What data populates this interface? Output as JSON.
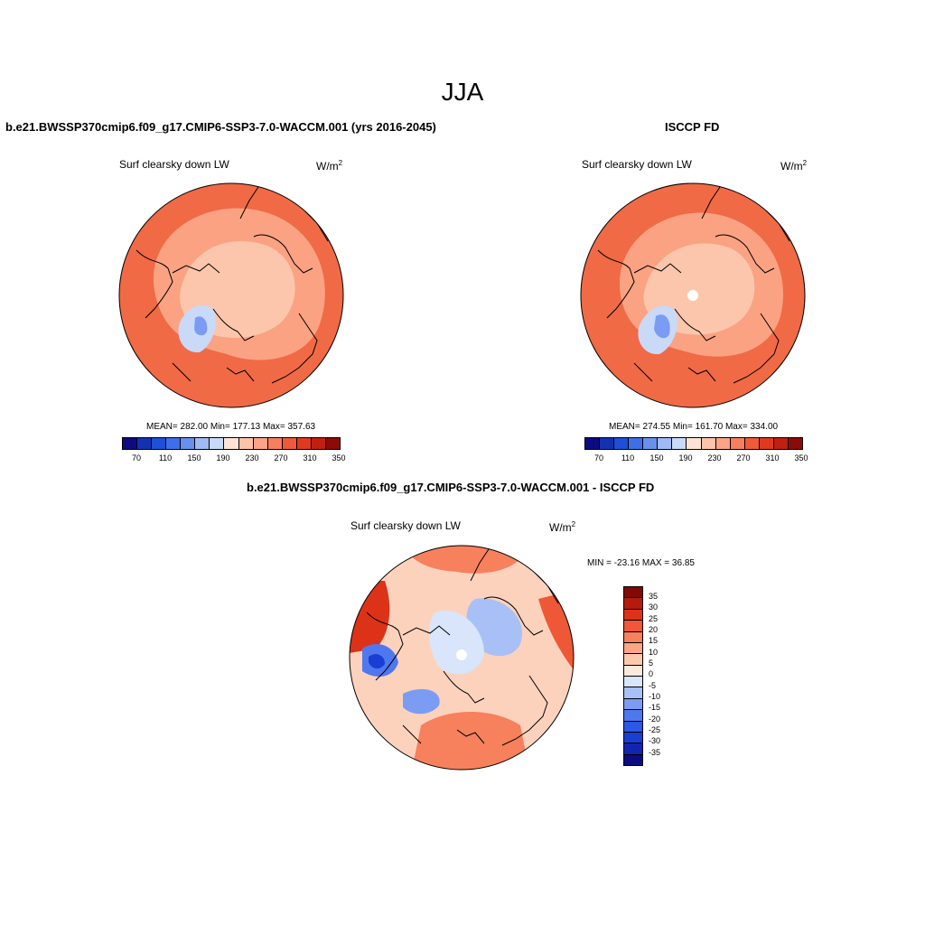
{
  "title": "JJA",
  "left_panel": {
    "case_title": "b.e21.BWSSP370cmip6.f09_g17.CMIP6-SSP3-7.0-WACCM.001 (yrs 2016-2045)",
    "variable": "Surf clearsky down LW",
    "units_base": "W/m",
    "units_exp": "2",
    "stats": "MEAN= 282.00  Min= 177.13  Max= 357.63"
  },
  "right_panel": {
    "case_title": "ISCCP FD",
    "variable": "Surf clearsky down LW",
    "units_base": "W/m",
    "units_exp": "2",
    "stats": "MEAN= 274.55  Min= 161.70  Max= 334.00"
  },
  "diff_panel": {
    "case_title": "b.e21.BWSSP370cmip6.f09_g17.CMIP6-SSP3-7.0-WACCM.001 - ISCCP FD",
    "variable": "Surf clearsky down LW",
    "units_base": "W/m",
    "units_exp": "2",
    "stats": "MIN = -23.16 MAX =  36.85"
  },
  "abs_colorbar": {
    "colors": [
      "#0c0b80",
      "#1232b0",
      "#1e4fd6",
      "#3f6fe8",
      "#6a90ee",
      "#9fbaf4",
      "#c9d9f8",
      "#fde3d6",
      "#fcc3aa",
      "#fba386",
      "#f77f5e",
      "#ef5a3a",
      "#dd3a1f",
      "#bf2012",
      "#8a0c08"
    ],
    "tick_labels": [
      "70",
      "110",
      "150",
      "190",
      "230",
      "270",
      "310",
      "350"
    ]
  },
  "diff_colorbar": {
    "colors": [
      "#0c0b80",
      "#1225b0",
      "#1a3ed4",
      "#2b58e6",
      "#4f78ee",
      "#7b9cf2",
      "#a9c0f6",
      "#d8e5fa",
      "#fde9dc",
      "#fcc8ae",
      "#fba586",
      "#f7805d",
      "#ee5836",
      "#dc3218",
      "#b51a0c",
      "#820906"
    ],
    "tick_labels": [
      "35",
      "30",
      "25",
      "20",
      "15",
      "10",
      "5",
      "0",
      "-5",
      "-10",
      "-15",
      "-20",
      "-25",
      "-30",
      "-35"
    ]
  },
  "map_regions": {
    "abs_outer_color": "#f06a45",
    "abs_mid_color": "#fba283",
    "abs_inner_color": "#fcc6ac",
    "greenland_color": "#c9d9f8",
    "greenland_core_color": "#7b9cf2",
    "diff_base_color": "#fcd2bd"
  }
}
